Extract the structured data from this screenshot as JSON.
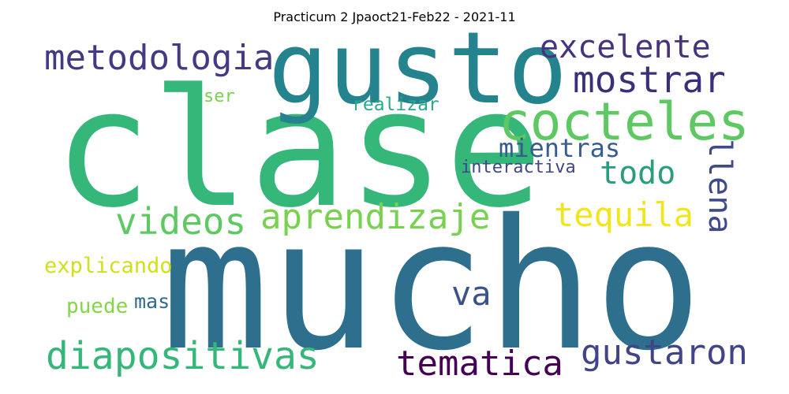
{
  "title": "Practicum 2 Jpaoct21-Feb22 - 2021-11",
  "words": [
    {
      "text": "mucho",
      "color": "#2f6f8e",
      "key": "mucho"
    },
    {
      "text": "clase",
      "color": "#35b779",
      "key": "clase"
    },
    {
      "text": "gusto",
      "color": "#25838e",
      "key": "gusto"
    },
    {
      "text": "cocteles",
      "color": "#5ec962",
      "key": "cocteles"
    },
    {
      "text": "metodologia",
      "color": "#443983",
      "key": "metodologia"
    },
    {
      "text": "excelente",
      "color": "#46327e",
      "key": "excelente"
    },
    {
      "text": "mostrar",
      "color": "#3b2f7a",
      "key": "mostrar"
    },
    {
      "text": "mientras",
      "color": "#365d8d",
      "key": "mientras"
    },
    {
      "text": "todo",
      "color": "#2a9d7c",
      "key": "todo"
    },
    {
      "text": "llena",
      "color": "#3e4a89",
      "key": "llena"
    },
    {
      "text": "interactiva",
      "color": "#404688",
      "key": "interactiva"
    },
    {
      "text": "realizar",
      "color": "#2aa98b",
      "key": "realizar"
    },
    {
      "text": "ser",
      "color": "#7ad151",
      "key": "ser"
    },
    {
      "text": "videos",
      "color": "#5ec962",
      "key": "videos"
    },
    {
      "text": "aprendizaje",
      "color": "#7ad151",
      "key": "aprendizaje"
    },
    {
      "text": "tequila",
      "color": "#f1e51d",
      "key": "tequila"
    },
    {
      "text": "explicando",
      "color": "#d0e11c",
      "key": "explicando"
    },
    {
      "text": "puede",
      "color": "#86d549",
      "key": "puede"
    },
    {
      "text": "mas",
      "color": "#31688e",
      "key": "mas"
    },
    {
      "text": "va",
      "color": "#3b528b",
      "key": "va"
    },
    {
      "text": "diapositivas",
      "color": "#35b779",
      "key": "diapositivas"
    },
    {
      "text": "tematica",
      "color": "#440154",
      "key": "tematica"
    },
    {
      "text": "gustaron",
      "color": "#414487",
      "key": "gustaron"
    }
  ]
}
